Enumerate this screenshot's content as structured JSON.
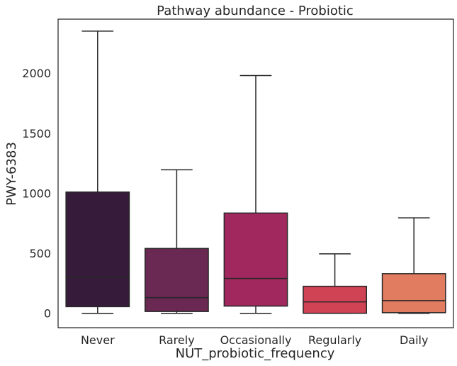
{
  "chart_data": {
    "type": "box",
    "title": "Pathway abundance - Probiotic",
    "xlabel": "NUT_probiotic_frequency",
    "ylabel": "PWY-6383",
    "ylim": [
      -120,
      2450
    ],
    "yticks": [
      0,
      500,
      1000,
      1500,
      2000
    ],
    "grid": false,
    "categories": [
      "Never",
      "Rarely",
      "Occasionally",
      "Regularly",
      "Daily"
    ],
    "boxes": [
      {
        "category": "Never",
        "whisker_low": 0,
        "q1": 55,
        "median": 300,
        "q3": 1010,
        "whisker_high": 2350,
        "color": "#361c3a"
      },
      {
        "category": "Rarely",
        "whisker_low": 0,
        "q1": 15,
        "median": 130,
        "q3": 540,
        "whisker_high": 1195,
        "color": "#6a2953"
      },
      {
        "category": "Occasionally",
        "whisker_low": 0,
        "q1": 60,
        "median": 290,
        "q3": 835,
        "whisker_high": 1980,
        "color": "#a0285e"
      },
      {
        "category": "Regularly",
        "whisker_low": 0,
        "q1": 0,
        "median": 95,
        "q3": 225,
        "whisker_high": 495,
        "color": "#cf4355"
      },
      {
        "category": "Daily",
        "whisker_low": 0,
        "q1": 5,
        "median": 105,
        "q3": 330,
        "whisker_high": 795,
        "color": "#e17c61"
      }
    ]
  }
}
